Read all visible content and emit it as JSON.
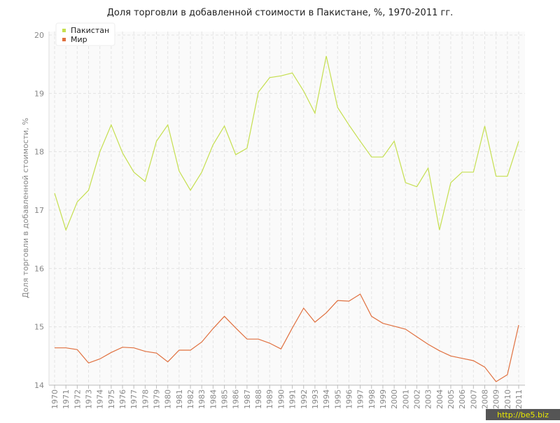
{
  "chart_data": {
    "type": "line",
    "title": "Доля торговли в добавленной стоимости в Пакистане, %, 1970-2011 гг.",
    "y_label": "Доля торговли в добавленной стоимости, %",
    "watermark": "http://be5.biz",
    "categories": [
      "1970",
      "1971",
      "1972",
      "1973",
      "1974",
      "1975",
      "1976",
      "1977",
      "1978",
      "1979",
      "1980",
      "1981",
      "1982",
      "1983",
      "1984",
      "1985",
      "1986",
      "1987",
      "1988",
      "1989",
      "1990",
      "1991",
      "1992",
      "1993",
      "1994",
      "1995",
      "1996",
      "1997",
      "1998",
      "1999",
      "2000",
      "2001",
      "2002",
      "2003",
      "2004",
      "2005",
      "2006",
      "2007",
      "2008",
      "2009",
      "2010",
      "2011"
    ],
    "series": [
      {
        "name": "Пакистан",
        "color": "#c5df4f",
        "values": [
          17.29,
          16.66,
          17.14,
          17.34,
          18.0,
          18.46,
          17.98,
          17.65,
          17.49,
          18.18,
          18.46,
          17.67,
          17.34,
          17.65,
          18.12,
          18.44,
          17.95,
          18.06,
          19.02,
          19.27,
          19.3,
          19.35,
          19.04,
          18.66,
          19.64,
          18.76,
          18.46,
          18.18,
          17.91,
          17.91,
          18.18,
          17.47,
          17.4,
          17.72,
          16.66,
          17.47,
          17.65,
          17.65,
          18.44,
          17.58,
          17.58,
          18.18
        ]
      },
      {
        "name": "Мир",
        "color": "#e0703f",
        "values": [
          14.64,
          14.64,
          14.61,
          14.38,
          14.45,
          14.56,
          14.65,
          14.64,
          14.58,
          14.55,
          14.4,
          14.6,
          14.6,
          14.74,
          14.97,
          15.18,
          14.98,
          14.79,
          14.79,
          14.72,
          14.62,
          14.98,
          15.32,
          15.08,
          15.24,
          15.45,
          15.44,
          15.56,
          15.18,
          15.06,
          15.01,
          14.96,
          14.83,
          14.7,
          14.59,
          14.5,
          14.46,
          14.42,
          14.31,
          14.06,
          14.18,
          15.03
        ]
      }
    ],
    "ylim": [
      14,
      20
    ],
    "yticks": [
      14,
      15,
      16,
      17,
      18,
      19,
      20
    ],
    "grid": true,
    "legend": "top-left"
  }
}
